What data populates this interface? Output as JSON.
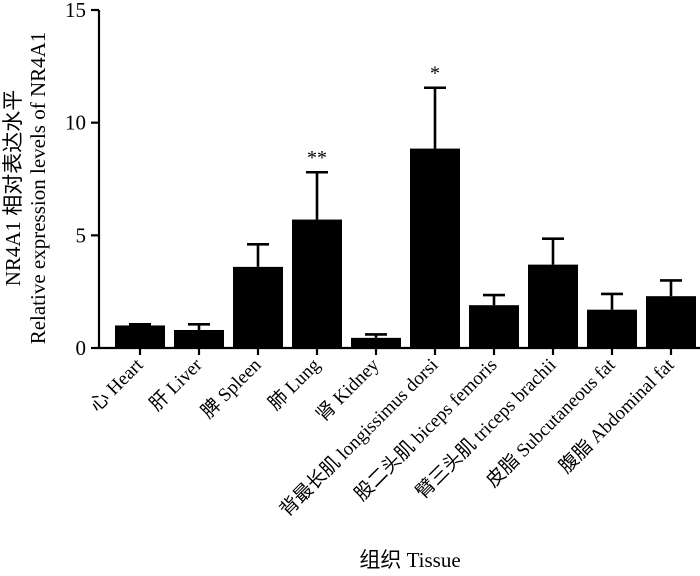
{
  "chart_data": {
    "type": "bar",
    "xlabel": "组织 Tissue",
    "ylabel_line1": "NR4A1 相对表达水平",
    "ylabel_line2": "Relative expression levels of NR4A1",
    "ylim": [
      0,
      15
    ],
    "yticks": [
      "0",
      "5",
      "10",
      "15"
    ],
    "grid": false,
    "bar_color": "#000000",
    "categories": [
      "心 Heart",
      "肝 Liver",
      "脾 Spleen",
      "肺 Lung",
      "肾 Kidney",
      "背最长肌 longissimus dorsi",
      "股二头肌 biceps femoris",
      "臂三头肌 triceps brachii",
      "皮脂 Subcutaneous fat",
      "腹脂 Abdominal fat"
    ],
    "values": [
      1.0,
      0.8,
      3.6,
      5.7,
      0.45,
      8.85,
      1.9,
      3.7,
      1.7,
      2.3
    ],
    "errors": [
      0.05,
      0.25,
      1.0,
      2.1,
      0.15,
      2.7,
      0.45,
      1.15,
      0.7,
      0.7
    ],
    "significance": [
      "",
      "",
      "",
      "**",
      "",
      "*",
      "",
      "",
      "",
      ""
    ]
  }
}
